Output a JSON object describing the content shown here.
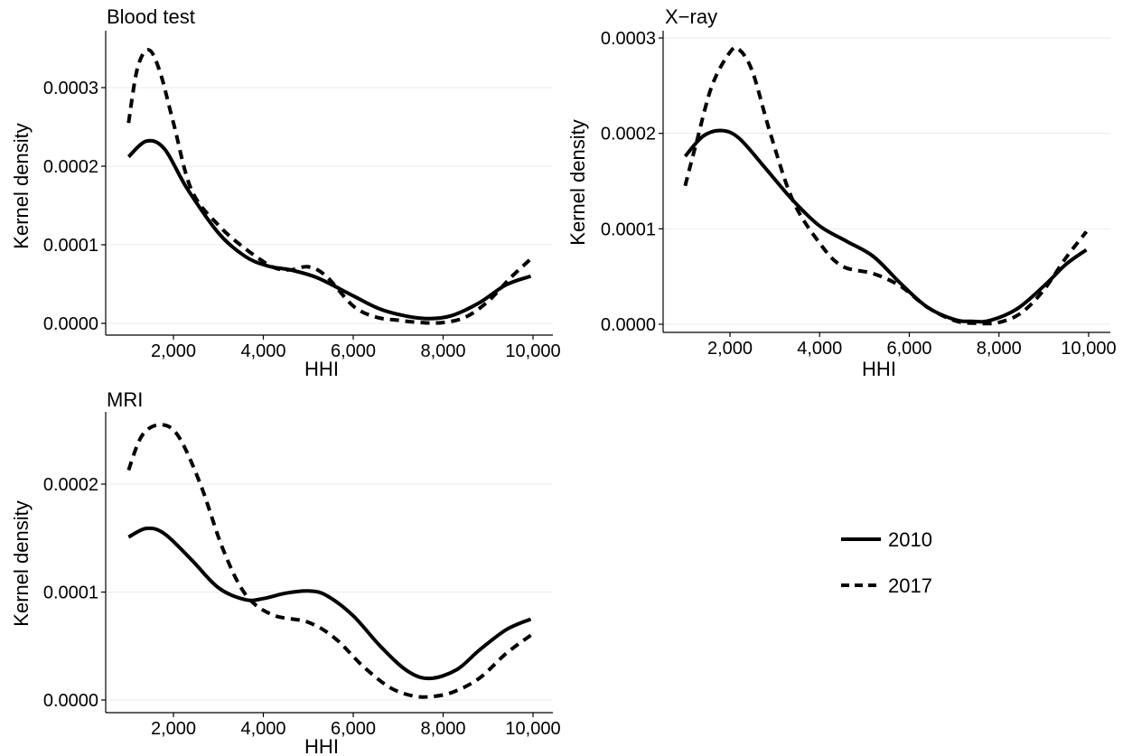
{
  "chart_data": [
    {
      "type": "line",
      "title": "Blood test",
      "xlabel": "HHI",
      "ylabel": "Kernel density",
      "xlim": [
        800,
        10000
      ],
      "ylim": [
        0,
        0.00036
      ],
      "x_ticks": [
        2000,
        4000,
        6000,
        8000,
        10000
      ],
      "x_tick_labels": [
        "2,000",
        "4,000",
        "6,000",
        "8,000",
        "10,000"
      ],
      "y_ticks": [
        0,
        0.0001,
        0.0002,
        0.0003
      ],
      "y_tick_labels": [
        "0.0000",
        "0.0001",
        "0.0002",
        "0.0003"
      ],
      "grid": "horizontal",
      "series": [
        {
          "name": "2010",
          "line_style": "solid",
          "points": [
            [
              1000,
              0.000212
            ],
            [
              1400,
              0.000232
            ],
            [
              1800,
              0.000222
            ],
            [
              2300,
              0.000172
            ],
            [
              3000,
              0.000115
            ],
            [
              3600,
              8.5e-05
            ],
            [
              4100,
              7.3e-05
            ],
            [
              4600,
              6.8e-05
            ],
            [
              5200,
              5.8e-05
            ],
            [
              6000,
              3.5e-05
            ],
            [
              6600,
              1.8e-05
            ],
            [
              7200,
              9e-06
            ],
            [
              7700,
              6e-06
            ],
            [
              8200,
              1e-05
            ],
            [
              8800,
              2.6e-05
            ],
            [
              9400,
              4.9e-05
            ],
            [
              9950,
              6e-05
            ]
          ]
        },
        {
          "name": "2017",
          "line_style": "dashed",
          "points": [
            [
              1000,
              0.000255
            ],
            [
              1200,
              0.000325
            ],
            [
              1450,
              0.000348
            ],
            [
              1700,
              0.00032
            ],
            [
              2000,
              0.000255
            ],
            [
              2400,
              0.00017
            ],
            [
              3000,
              0.000125
            ],
            [
              3600,
              9.5e-05
            ],
            [
              4200,
              7.2e-05
            ],
            [
              4600,
              6.8e-05
            ],
            [
              5000,
              7.2e-05
            ],
            [
              5400,
              6e-05
            ],
            [
              6000,
              2.2e-05
            ],
            [
              6500,
              8e-06
            ],
            [
              7000,
              4e-06
            ],
            [
              7500,
              1e-06
            ],
            [
              8000,
              1e-06
            ],
            [
              8500,
              8e-06
            ],
            [
              9000,
              2.8e-05
            ],
            [
              9500,
              5.8e-05
            ],
            [
              9950,
              8.2e-05
            ]
          ]
        }
      ]
    },
    {
      "type": "line",
      "title": "X−ray",
      "xlabel": "HHI",
      "ylabel": "Kernel density",
      "xlim": [
        800,
        10000
      ],
      "ylim": [
        0,
        0.0003
      ],
      "x_ticks": [
        2000,
        4000,
        6000,
        8000,
        10000
      ],
      "x_tick_labels": [
        "2,000",
        "4,000",
        "6,000",
        "8,000",
        "10,000"
      ],
      "y_ticks": [
        0,
        0.0001,
        0.0002,
        0.0003
      ],
      "y_tick_labels": [
        "0.0000",
        "0.0001",
        "0.0002",
        "0.0003"
      ],
      "grid": "horizontal",
      "series": [
        {
          "name": "2010",
          "line_style": "solid",
          "points": [
            [
              1000,
              0.000176
            ],
            [
              1400,
              0.000197
            ],
            [
              1800,
              0.000203
            ],
            [
              2200,
              0.000195
            ],
            [
              2800,
              0.000163
            ],
            [
              3400,
              0.00013
            ],
            [
              4000,
              0.000103
            ],
            [
              4600,
              8.7e-05
            ],
            [
              5200,
              7.1e-05
            ],
            [
              5800,
              4.3e-05
            ],
            [
              6400,
              1.8e-05
            ],
            [
              7000,
              5e-06
            ],
            [
              7400,
              3e-06
            ],
            [
              7800,
              4e-06
            ],
            [
              8400,
              1.6e-05
            ],
            [
              9000,
              4e-05
            ],
            [
              9500,
              6.3e-05
            ],
            [
              9950,
              7.8e-05
            ]
          ]
        },
        {
          "name": "2017",
          "line_style": "dashed",
          "points": [
            [
              1000,
              0.000145
            ],
            [
              1250,
              0.00019
            ],
            [
              1600,
              0.00025
            ],
            [
              2000,
              0.000285
            ],
            [
              2200,
              0.000288
            ],
            [
              2500,
              0.000265
            ],
            [
              2900,
              0.0002
            ],
            [
              3400,
              0.00013
            ],
            [
              4000,
              8.5e-05
            ],
            [
              4500,
              6.1e-05
            ],
            [
              5200,
              5.3e-05
            ],
            [
              5800,
              4e-05
            ],
            [
              6400,
              1.8e-05
            ],
            [
              7000,
              4e-06
            ],
            [
              7500,
              1e-06
            ],
            [
              8000,
              2e-06
            ],
            [
              8500,
              1.2e-05
            ],
            [
              9000,
              3.6e-05
            ],
            [
              9500,
              7e-05
            ],
            [
              9950,
              9.7e-05
            ]
          ]
        }
      ]
    },
    {
      "type": "line",
      "title": "MRI",
      "xlabel": "HHI",
      "ylabel": "Kernel density",
      "xlim": [
        800,
        10000
      ],
      "ylim": [
        0,
        0.00026
      ],
      "x_ticks": [
        2000,
        4000,
        6000,
        8000,
        10000
      ],
      "x_tick_labels": [
        "2,000",
        "4,000",
        "6,000",
        "8,000",
        "10,000"
      ],
      "y_ticks": [
        0,
        0.0001,
        0.0002
      ],
      "y_tick_labels": [
        "0.0000",
        "0.0001",
        "0.0002"
      ],
      "grid": "horizontal",
      "series": [
        {
          "name": "2010",
          "line_style": "solid",
          "points": [
            [
              1000,
              0.000151
            ],
            [
              1400,
              0.000159
            ],
            [
              1800,
              0.000154
            ],
            [
              2400,
              0.00013
            ],
            [
              3000,
              0.000104
            ],
            [
              3600,
              9.3e-05
            ],
            [
              4000,
              9.4e-05
            ],
            [
              4500,
              9.9e-05
            ],
            [
              5000,
              0.000101
            ],
            [
              5400,
              9.7e-05
            ],
            [
              6000,
              7.8e-05
            ],
            [
              6600,
              5e-05
            ],
            [
              7200,
              2.7e-05
            ],
            [
              7700,
              2e-05
            ],
            [
              8300,
              2.8e-05
            ],
            [
              8800,
              4.6e-05
            ],
            [
              9400,
              6.5e-05
            ],
            [
              9950,
              7.5e-05
            ]
          ]
        },
        {
          "name": "2017",
          "line_style": "dashed",
          "points": [
            [
              1000,
              0.000213
            ],
            [
              1300,
              0.000245
            ],
            [
              1700,
              0.000255
            ],
            [
              2100,
              0.000245
            ],
            [
              2600,
              0.0002
            ],
            [
              3100,
              0.00014
            ],
            [
              3600,
              9.8e-05
            ],
            [
              4200,
              7.9e-05
            ],
            [
              5000,
              7.2e-05
            ],
            [
              5600,
              5.7e-05
            ],
            [
              6200,
              3.2e-05
            ],
            [
              6800,
              1.2e-05
            ],
            [
              7300,
              4e-06
            ],
            [
              7700,
              3e-06
            ],
            [
              8200,
              7e-06
            ],
            [
              8800,
              2e-05
            ],
            [
              9400,
              4.3e-05
            ],
            [
              9950,
              6e-05
            ]
          ]
        }
      ]
    }
  ],
  "legend": {
    "placement": "bottom-right",
    "items": [
      {
        "label": "2010",
        "line_style": "solid"
      },
      {
        "label": "2017",
        "line_style": "dashed"
      }
    ]
  }
}
